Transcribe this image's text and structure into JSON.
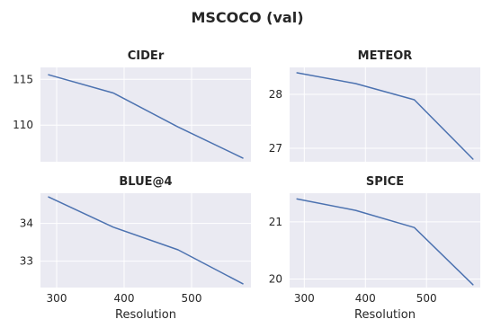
{
  "figure": {
    "title": "MSCOCO (val)"
  },
  "colors": {
    "plot_background": "#eaeaf2",
    "grid": "#ffffff",
    "series": "#4c72b0",
    "text": "#262626"
  },
  "chart_data": [
    {
      "type": "line",
      "title": "CIDEr",
      "xlabel": "",
      "ylabel": "",
      "x": [
        288,
        384,
        480,
        576
      ],
      "series": [
        {
          "values": [
            115.5,
            113.5,
            109.8,
            106.4
          ]
        }
      ],
      "xlim": [
        276,
        588
      ],
      "ylim": [
        106.0,
        116.3
      ],
      "xticks": [
        300,
        400,
        500
      ],
      "yticks": [
        110,
        115
      ],
      "xtick_labels_visible": false,
      "grid": true
    },
    {
      "type": "line",
      "title": "METEOR",
      "xlabel": "",
      "ylabel": "",
      "x": [
        288,
        384,
        480,
        576
      ],
      "series": [
        {
          "values": [
            28.4,
            28.2,
            27.9,
            26.8
          ]
        }
      ],
      "xlim": [
        276,
        588
      ],
      "ylim": [
        26.75,
        28.5
      ],
      "xticks": [
        300,
        400,
        500
      ],
      "yticks": [
        27,
        28
      ],
      "xtick_labels_visible": false,
      "grid": true
    },
    {
      "type": "line",
      "title": "BLUE@4",
      "xlabel": "Resolution",
      "ylabel": "",
      "x": [
        288,
        384,
        480,
        576
      ],
      "series": [
        {
          "values": [
            34.7,
            33.9,
            33.3,
            32.4
          ]
        }
      ],
      "xlim": [
        276,
        588
      ],
      "ylim": [
        32.3,
        34.8
      ],
      "xticks": [
        300,
        400,
        500
      ],
      "yticks": [
        33,
        34
      ],
      "xtick_labels_visible": true,
      "grid": true
    },
    {
      "type": "line",
      "title": "SPICE",
      "xlabel": "Resolution",
      "ylabel": "",
      "x": [
        288,
        384,
        480,
        576
      ],
      "series": [
        {
          "values": [
            21.4,
            21.2,
            20.9,
            19.9
          ]
        }
      ],
      "xlim": [
        276,
        588
      ],
      "ylim": [
        19.85,
        21.5
      ],
      "xticks": [
        300,
        400,
        500
      ],
      "yticks": [
        20,
        21
      ],
      "xtick_labels_visible": true,
      "grid": true
    }
  ]
}
